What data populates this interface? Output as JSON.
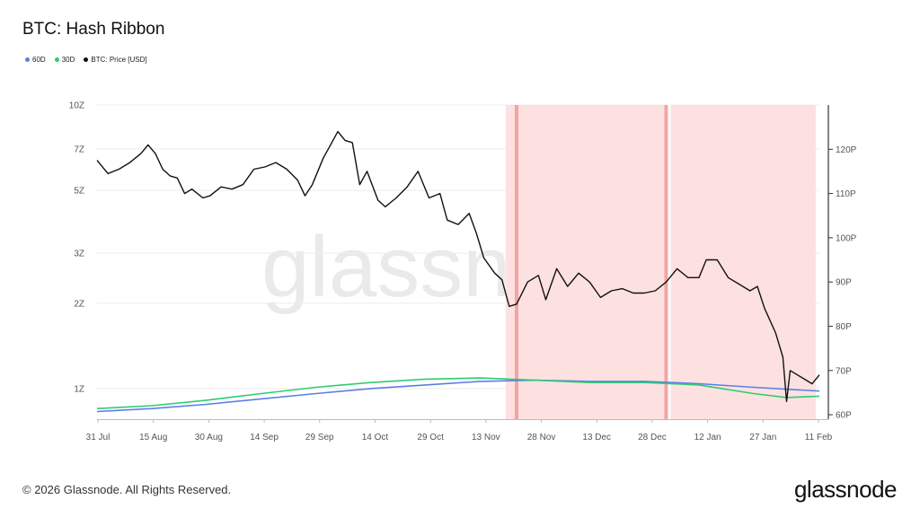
{
  "title": "BTC: Hash Ribbon",
  "legend": [
    {
      "name": "60D",
      "color": "#5b7fe6"
    },
    {
      "name": "30D",
      "color": "#2ecc71"
    },
    {
      "name": "BTC: Price [USD]",
      "color": "#111111"
    }
  ],
  "watermark": "glassnode",
  "footer": "© 2026 Glassnode. All Rights Reserved.",
  "brand": "glassnode",
  "chart_data": {
    "type": "line",
    "x_ticks": [
      "31 Jul",
      "15 Aug",
      "30 Aug",
      "14 Sep",
      "29 Sep",
      "14 Oct",
      "29 Oct",
      "13 Nov",
      "28 Nov",
      "13 Dec",
      "28 Dec",
      "12 Jan",
      "27 Jan",
      "11 Feb"
    ],
    "x_range": [
      "2025-07-31",
      "2026-02-14"
    ],
    "left_axis": {
      "scale": "log",
      "ticks": [
        "1Z",
        "2Z",
        "3Z",
        "5Z",
        "7Z",
        "10Z"
      ],
      "tick_values": [
        1,
        2,
        3,
        5,
        7,
        10
      ]
    },
    "right_axis": {
      "scale": "linear",
      "ticks": [
        "60P",
        "70P",
        "80P",
        "90P",
        "100P",
        "110P",
        "120P"
      ],
      "tick_values": [
        60,
        70,
        80,
        90,
        100,
        110,
        120
      ],
      "range": [
        59,
        130
      ]
    },
    "shaded_regions": [
      {
        "start": "2025-11-20",
        "end": "2026-02-13",
        "color": "#fde1e1"
      }
    ],
    "capitulation_lines": [
      {
        "date": "2025-11-23",
        "color": "#f4a3a3"
      },
      {
        "date": "2026-01-03",
        "color": "#f4a3a3"
      }
    ],
    "series": [
      {
        "name": "BTC: Price [USD]",
        "axis": "right",
        "color": "#111111",
        "points": [
          [
            "2025-07-31",
            117.5
          ],
          [
            "2025-08-03",
            114.5
          ],
          [
            "2025-08-06",
            115.5
          ],
          [
            "2025-08-09",
            117
          ],
          [
            "2025-08-12",
            119
          ],
          [
            "2025-08-14",
            121
          ],
          [
            "2025-08-16",
            119
          ],
          [
            "2025-08-18",
            115.5
          ],
          [
            "2025-08-20",
            114
          ],
          [
            "2025-08-22",
            113.5
          ],
          [
            "2025-08-24",
            110
          ],
          [
            "2025-08-26",
            111
          ],
          [
            "2025-08-29",
            109
          ],
          [
            "2025-08-31",
            109.5
          ],
          [
            "2025-09-03",
            111.5
          ],
          [
            "2025-09-06",
            111
          ],
          [
            "2025-09-09",
            112
          ],
          [
            "2025-09-12",
            115.5
          ],
          [
            "2025-09-15",
            116
          ],
          [
            "2025-09-18",
            117
          ],
          [
            "2025-09-21",
            115.5
          ],
          [
            "2025-09-24",
            113
          ],
          [
            "2025-09-26",
            109.5
          ],
          [
            "2025-09-28",
            112
          ],
          [
            "2025-10-01",
            118
          ],
          [
            "2025-10-03",
            121
          ],
          [
            "2025-10-05",
            124
          ],
          [
            "2025-10-07",
            122
          ],
          [
            "2025-10-09",
            121.5
          ],
          [
            "2025-10-11",
            112
          ],
          [
            "2025-10-13",
            115
          ],
          [
            "2025-10-16",
            108.5
          ],
          [
            "2025-10-18",
            107
          ],
          [
            "2025-10-21",
            109
          ],
          [
            "2025-10-24",
            111.5
          ],
          [
            "2025-10-27",
            115
          ],
          [
            "2025-10-30",
            109
          ],
          [
            "2025-11-02",
            110
          ],
          [
            "2025-11-04",
            104
          ],
          [
            "2025-11-07",
            103
          ],
          [
            "2025-11-10",
            105.5
          ],
          [
            "2025-11-12",
            101
          ],
          [
            "2025-11-14",
            95.5
          ],
          [
            "2025-11-17",
            92
          ],
          [
            "2025-11-19",
            90.5
          ],
          [
            "2025-11-21",
            84.5
          ],
          [
            "2025-11-23",
            85
          ],
          [
            "2025-11-26",
            90
          ],
          [
            "2025-11-29",
            91.5
          ],
          [
            "2025-12-01",
            86
          ],
          [
            "2025-12-04",
            93
          ],
          [
            "2025-12-07",
            89
          ],
          [
            "2025-12-10",
            92
          ],
          [
            "2025-12-13",
            90
          ],
          [
            "2025-12-16",
            86.5
          ],
          [
            "2025-12-19",
            88
          ],
          [
            "2025-12-22",
            88.5
          ],
          [
            "2025-12-25",
            87.5
          ],
          [
            "2025-12-28",
            87.5
          ],
          [
            "2025-12-31",
            88
          ],
          [
            "2026-01-03",
            90
          ],
          [
            "2026-01-06",
            93
          ],
          [
            "2026-01-09",
            91
          ],
          [
            "2026-01-12",
            91
          ],
          [
            "2026-01-14",
            95
          ],
          [
            "2026-01-17",
            95
          ],
          [
            "2026-01-20",
            91
          ],
          [
            "2026-01-23",
            89.5
          ],
          [
            "2026-01-26",
            88
          ],
          [
            "2026-01-28",
            89
          ],
          [
            "2026-01-30",
            84
          ],
          [
            "2026-02-02",
            78.5
          ],
          [
            "2026-02-04",
            73
          ],
          [
            "2026-02-05",
            63
          ],
          [
            "2026-02-06",
            70
          ],
          [
            "2026-02-08",
            69
          ],
          [
            "2026-02-10",
            68
          ],
          [
            "2026-02-12",
            67
          ],
          [
            "2026-02-14",
            69
          ]
        ]
      },
      {
        "name": "60D",
        "axis": "left",
        "color": "#5b7fe6",
        "points": [
          [
            "2025-07-31",
            0.83
          ],
          [
            "2025-08-15",
            0.85
          ],
          [
            "2025-08-30",
            0.88
          ],
          [
            "2025-09-14",
            0.92
          ],
          [
            "2025-09-29",
            0.96
          ],
          [
            "2025-10-14",
            1.0
          ],
          [
            "2025-10-29",
            1.03
          ],
          [
            "2025-11-13",
            1.06
          ],
          [
            "2025-11-28",
            1.07
          ],
          [
            "2025-12-13",
            1.06
          ],
          [
            "2025-12-28",
            1.06
          ],
          [
            "2026-01-12",
            1.04
          ],
          [
            "2026-01-27",
            1.01
          ],
          [
            "2026-02-14",
            0.98
          ]
        ]
      },
      {
        "name": "30D",
        "axis": "left",
        "color": "#2ecc71",
        "points": [
          [
            "2025-07-31",
            0.85
          ],
          [
            "2025-08-15",
            0.87
          ],
          [
            "2025-08-30",
            0.91
          ],
          [
            "2025-09-14",
            0.96
          ],
          [
            "2025-09-29",
            1.01
          ],
          [
            "2025-10-14",
            1.05
          ],
          [
            "2025-10-29",
            1.08
          ],
          [
            "2025-11-13",
            1.09
          ],
          [
            "2025-11-28",
            1.07
          ],
          [
            "2025-12-13",
            1.05
          ],
          [
            "2025-12-28",
            1.05
          ],
          [
            "2026-01-12",
            1.03
          ],
          [
            "2026-01-27",
            0.96
          ],
          [
            "2026-02-05",
            0.93
          ],
          [
            "2026-02-14",
            0.94
          ]
        ]
      }
    ]
  }
}
